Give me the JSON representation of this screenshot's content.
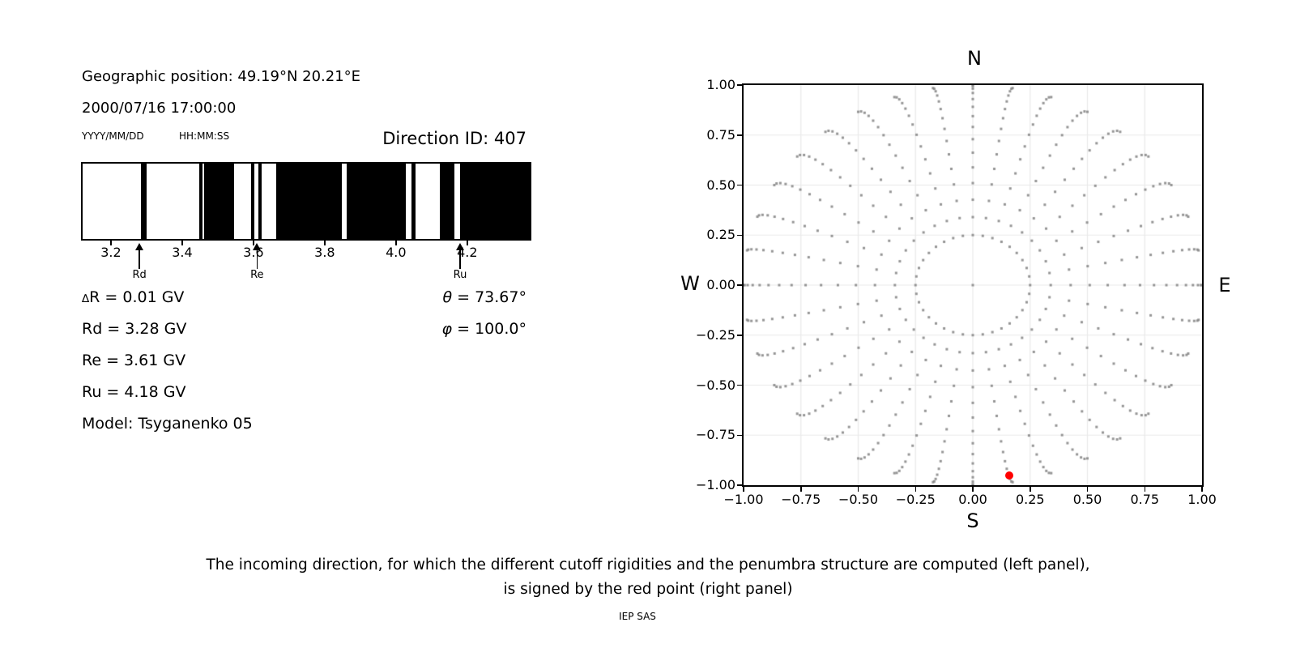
{
  "figure": {
    "background": "#ffffff"
  },
  "header": {
    "geo_position": "Geographic position: 49.19°N 20.21°E",
    "datetime": "2000/07/16 17:00:00",
    "date_format": "YYYY/MM/DD",
    "time_format": "HH:MM:SS",
    "direction_id": "Direction ID: 407"
  },
  "penumbra": {
    "xlim": [
      3.116,
      4.38
    ],
    "x_ticks": [
      {
        "value": 3.2,
        "label": "3.2"
      },
      {
        "value": 3.4,
        "label": "3.4"
      },
      {
        "value": 3.6,
        "label": "3.6"
      },
      {
        "value": 3.8,
        "label": "3.8"
      },
      {
        "value": 4.0,
        "label": "4.0"
      },
      {
        "value": 4.2,
        "label": "4.2"
      }
    ],
    "black_bands_gv": [
      [
        3.28,
        3.296
      ],
      [
        3.446,
        3.456
      ],
      [
        3.46,
        3.544
      ],
      [
        3.593,
        3.601
      ],
      [
        3.614,
        3.622
      ],
      [
        3.663,
        3.848
      ],
      [
        3.863,
        4.029
      ],
      [
        4.045,
        4.058
      ],
      [
        4.125,
        4.167
      ],
      [
        4.184,
        4.38
      ]
    ],
    "arrows": [
      {
        "label": "Rd",
        "value_gv": 3.28
      },
      {
        "label": "Re",
        "value_gv": 3.61
      },
      {
        "label": "Ru",
        "value_gv": 4.18
      }
    ],
    "bar_color": "#000000"
  },
  "info": {
    "rows": [
      {
        "prefix": "∆",
        "text": "R = 0.01 GV"
      },
      {
        "prefix": "",
        "text": "Rd = 3.28 GV"
      },
      {
        "prefix": "",
        "text": "Re = 3.61 GV"
      },
      {
        "prefix": "",
        "text": "Ru = 4.18 GV"
      },
      {
        "prefix": "",
        "text": "Model: Tsyganenko 05"
      }
    ],
    "angles": [
      {
        "symbol": "θ",
        "text": " = 73.67°"
      },
      {
        "symbol": "φ",
        "text": " = 100.0°"
      }
    ]
  },
  "chart_data": {
    "type": "scatter",
    "description": "Grid of computed incoming directions: 36 azimuthal rays (10° step), 15 zenith steps per ray, projected radius r = sin(zenith); slight azimuthal bow vanishing at cardinal directions; dots accumulate at the rim; selected direction shown in red.",
    "xlim": [
      -1,
      1
    ],
    "ylim": [
      -1,
      1
    ],
    "x_ticks": [
      {
        "value": -1.0,
        "label": "−1.00"
      },
      {
        "value": -0.75,
        "label": "−0.75"
      },
      {
        "value": -0.5,
        "label": "−0.50"
      },
      {
        "value": -0.25,
        "label": "−0.25"
      },
      {
        "value": 0.0,
        "label": "0.00"
      },
      {
        "value": 0.25,
        "label": "0.25"
      },
      {
        "value": 0.5,
        "label": "0.50"
      },
      {
        "value": 0.75,
        "label": "0.75"
      },
      {
        "value": 1.0,
        "label": "1.00"
      }
    ],
    "y_ticks": [
      {
        "value": 1.0,
        "label": "1.00"
      },
      {
        "value": 0.75,
        "label": "0.75"
      },
      {
        "value": 0.5,
        "label": "0.50"
      },
      {
        "value": 0.25,
        "label": "0.25"
      },
      {
        "value": 0.0,
        "label": "0.00"
      },
      {
        "value": -0.25,
        "label": "−0.25"
      },
      {
        "value": -0.5,
        "label": "−0.50"
      },
      {
        "value": -0.75,
        "label": "−0.75"
      },
      {
        "value": -1.0,
        "label": "−1.00"
      }
    ],
    "compass": {
      "north": "N",
      "south": "S",
      "west": "W",
      "east": "E"
    },
    "rays": {
      "n_azimuths": 36,
      "azimuth_step_deg": 10,
      "zenith_min_deg": 14.48,
      "zenith_max_deg": 89.99,
      "points_per_ray": 15,
      "radius_mapping": "sin(zenith)",
      "curvature_deg": 3
    },
    "center_point": {
      "x": 0,
      "y": 0
    },
    "selected_direction": {
      "id": 407,
      "x": 0.16,
      "y": -0.95,
      "zenith_deg": 73.67,
      "azimuth_deg": 100.0
    },
    "grid": true,
    "colors": {
      "dot": "#828282",
      "dot_alpha": 0.85,
      "selected": "#ff0000",
      "gridline": "#e9e9e9",
      "axis": "#000000"
    }
  },
  "caption": {
    "line1": "The incoming direction, for which the different cutoff rigidities and the penumbra structure are computed (left panel),",
    "line2": "is signed by the red point (right panel)",
    "credit": "IEP SAS"
  }
}
